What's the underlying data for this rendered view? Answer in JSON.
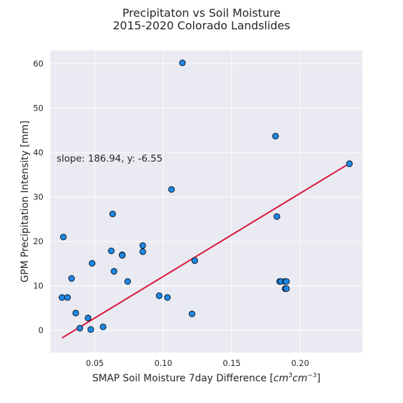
{
  "chart_data": {
    "type": "scatter",
    "title": [
      "Precipitaton vs Soil Moisture",
      "2015-2020 Colorado Landslides"
    ],
    "xlabel": "SMAP Soil Moisture 7day Difference [",
    "xlabel_math": "cm",
    "xlabel_sup1": "3",
    "xlabel_math2": "cm",
    "xlabel_sup2": "−3",
    "xlabel_close": "]",
    "ylabel": "GPM Precipitation Intensity [mm]",
    "xlim": [
      0.0175,
      0.2455
    ],
    "ylim": [
      -5,
      63
    ],
    "xticks": [
      0.05,
      0.1,
      0.15,
      0.2
    ],
    "xtick_labels": [
      "0.05",
      "0.10",
      "0.15",
      "0.20"
    ],
    "yticks": [
      0,
      10,
      20,
      30,
      40,
      50,
      60
    ],
    "ytick_labels": [
      "0",
      "10",
      "20",
      "30",
      "40",
      "50",
      "60"
    ],
    "grid": true,
    "annotation": "slope: 186.94, y: -6.55",
    "fit_line": {
      "slope": 186.94,
      "intercept": -6.55,
      "x_range": [
        0.026,
        0.236
      ]
    },
    "colors": {
      "background": "#eaeaf2",
      "point": "#1e88e5",
      "point_edge": "#0d1b2a",
      "fit": "#dc143c"
    },
    "points": [
      {
        "x": 0.026,
        "y": 7.4
      },
      {
        "x": 0.027,
        "y": 21.0
      },
      {
        "x": 0.03,
        "y": 7.4
      },
      {
        "x": 0.033,
        "y": 11.7
      },
      {
        "x": 0.036,
        "y": 3.9
      },
      {
        "x": 0.039,
        "y": 0.5
      },
      {
        "x": 0.045,
        "y": 2.8
      },
      {
        "x": 0.047,
        "y": 0.2
      },
      {
        "x": 0.048,
        "y": 15.1
      },
      {
        "x": 0.056,
        "y": 0.8
      },
      {
        "x": 0.062,
        "y": 17.9
      },
      {
        "x": 0.063,
        "y": 26.2
      },
      {
        "x": 0.064,
        "y": 13.3
      },
      {
        "x": 0.07,
        "y": 17.0
      },
      {
        "x": 0.07,
        "y": 16.9
      },
      {
        "x": 0.074,
        "y": 11.0
      },
      {
        "x": 0.085,
        "y": 19.1
      },
      {
        "x": 0.085,
        "y": 17.7
      },
      {
        "x": 0.097,
        "y": 7.8
      },
      {
        "x": 0.103,
        "y": 7.4
      },
      {
        "x": 0.106,
        "y": 31.7
      },
      {
        "x": 0.114,
        "y": 60.2
      },
      {
        "x": 0.121,
        "y": 3.7
      },
      {
        "x": 0.123,
        "y": 15.7
      },
      {
        "x": 0.182,
        "y": 43.7
      },
      {
        "x": 0.183,
        "y": 25.6
      },
      {
        "x": 0.185,
        "y": 11.0
      },
      {
        "x": 0.186,
        "y": 11.0
      },
      {
        "x": 0.189,
        "y": 11.0
      },
      {
        "x": 0.19,
        "y": 11.0
      },
      {
        "x": 0.189,
        "y": 9.4
      },
      {
        "x": 0.19,
        "y": 9.4
      },
      {
        "x": 0.236,
        "y": 37.5
      }
    ]
  }
}
